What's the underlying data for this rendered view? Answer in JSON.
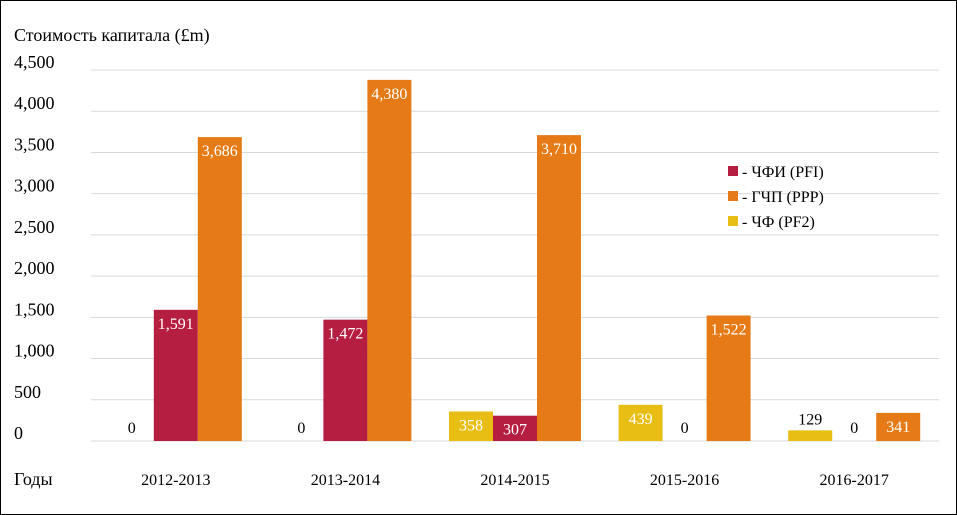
{
  "chart_data": {
    "type": "bar",
    "ylabel": "Стоимость капитала (£m)",
    "xlabel": "Годы",
    "ylim": [
      0,
      4500
    ],
    "yticks": [
      0,
      500,
      1000,
      1500,
      2000,
      2500,
      3000,
      3500,
      4000,
      4500
    ],
    "ytick_labels": [
      "0",
      "500",
      "1,000",
      "1,500",
      "2,000",
      "2,500",
      "3,000",
      "3,500",
      "4,000",
      "4,500"
    ],
    "categories": [
      "2012-2013",
      "2013-2014",
      "2014-2015",
      "2015-2016",
      "2016-2017"
    ],
    "series": [
      {
        "name": "- ЧФ (PF2)",
        "color": "#e8be14",
        "values": [
          0,
          0,
          358,
          439,
          129
        ],
        "labels": [
          "0",
          "0",
          "358",
          "439",
          "129"
        ]
      },
      {
        "name": "- ЧФИ (PFI)",
        "color": "#b51d41",
        "values": [
          1591,
          1472,
          307,
          0,
          0
        ],
        "labels": [
          "1,591",
          "1,472",
          "307",
          "0",
          "0"
        ]
      },
      {
        "name": "- ГЧП (PPP)",
        "color": "#e57a16",
        "values": [
          3686,
          4380,
          3710,
          1522,
          341
        ],
        "labels": [
          "3,686",
          "4,380",
          "3,710",
          "1,522",
          "341"
        ]
      }
    ],
    "legend_order": [
      1,
      2,
      0
    ],
    "legend_position": "right",
    "grid": true
  }
}
